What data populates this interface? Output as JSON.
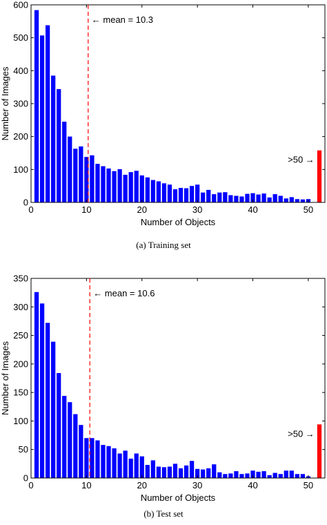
{
  "chart_data": [
    {
      "type": "bar",
      "caption": "(a)  Training set",
      "xlabel": "Number of Objects",
      "ylabel": "Number of Images",
      "xlim": [
        0,
        53
      ],
      "ylim": [
        0,
        600
      ],
      "xticks": [
        0,
        10,
        20,
        30,
        40,
        50
      ],
      "yticks": [
        0,
        100,
        200,
        300,
        400,
        500,
        600
      ],
      "x": [
        1,
        2,
        3,
        4,
        5,
        6,
        7,
        8,
        9,
        10,
        11,
        12,
        13,
        14,
        15,
        16,
        17,
        18,
        19,
        20,
        21,
        22,
        23,
        24,
        25,
        26,
        27,
        28,
        29,
        30,
        31,
        32,
        33,
        34,
        35,
        36,
        37,
        38,
        39,
        40,
        41,
        42,
        43,
        44,
        45,
        46,
        47,
        48,
        49,
        50
      ],
      "values": [
        584,
        507,
        538,
        385,
        344,
        245,
        200,
        163,
        170,
        138,
        143,
        117,
        110,
        103,
        95,
        101,
        84,
        92,
        96,
        82,
        76,
        68,
        64,
        58,
        54,
        40,
        44,
        43,
        50,
        54,
        30,
        38,
        25,
        30,
        31,
        22,
        20,
        18,
        26,
        28,
        24,
        27,
        15,
        25,
        20,
        12,
        16,
        10,
        9,
        10
      ],
      "overflow_bar": {
        "x": 52,
        "value": 158,
        "color": "#ff0000"
      },
      "bar_color": "#0000ff",
      "mean": {
        "value": 10.3,
        "label": "← mean = 10.3",
        "color": "#ff0000"
      },
      "overflow_label": ">50 →",
      "grid": false
    },
    {
      "type": "bar",
      "caption": "(b)  Test set",
      "xlabel": "Number of Objects",
      "ylabel": "Number of Images",
      "xlim": [
        0,
        53
      ],
      "ylim": [
        0,
        350
      ],
      "xticks": [
        0,
        10,
        20,
        30,
        40,
        50
      ],
      "yticks": [
        0,
        50,
        100,
        150,
        200,
        250,
        300,
        350
      ],
      "x": [
        1,
        2,
        3,
        4,
        5,
        6,
        7,
        8,
        9,
        10,
        11,
        12,
        13,
        14,
        15,
        16,
        17,
        18,
        19,
        20,
        21,
        22,
        23,
        24,
        25,
        26,
        27,
        28,
        29,
        30,
        31,
        32,
        33,
        34,
        35,
        36,
        37,
        38,
        39,
        40,
        41,
        42,
        43,
        44,
        45,
        46,
        47,
        48,
        49,
        50
      ],
      "values": [
        326,
        306,
        272,
        239,
        184,
        144,
        133,
        112,
        93,
        70,
        70,
        66,
        58,
        56,
        52,
        43,
        48,
        34,
        43,
        38,
        23,
        31,
        20,
        19,
        20,
        25,
        17,
        22,
        30,
        16,
        15,
        17,
        24,
        10,
        7,
        8,
        12,
        7,
        8,
        13,
        11,
        12,
        5,
        9,
        7,
        13,
        13,
        7,
        7,
        3
      ],
      "overflow_bar": {
        "x": 52,
        "value": 94,
        "color": "#ff0000"
      },
      "bar_color": "#0000ff",
      "mean": {
        "value": 10.6,
        "label": "← mean = 10.6",
        "color": "#ff0000"
      },
      "overflow_label": ">50 →",
      "grid": false
    }
  ]
}
